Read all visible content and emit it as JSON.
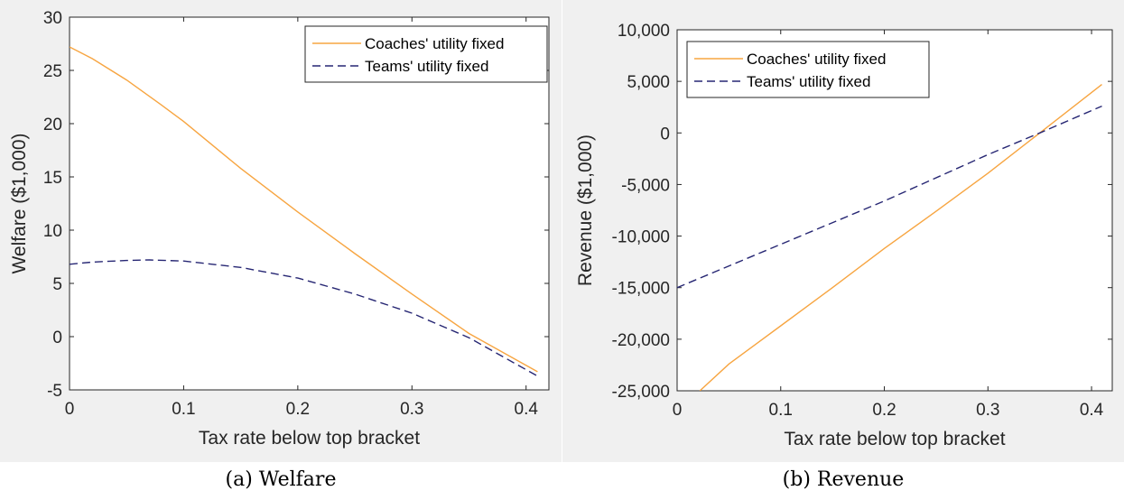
{
  "colors": {
    "coaches": "#F7A541",
    "teams": "#262673",
    "background": "#f0f0f0"
  },
  "chart_data": [
    {
      "id": "a",
      "type": "line",
      "caption": "(a) Welfare",
      "xlabel": "Tax rate below top bracket",
      "ylabel": "Welfare ($1,000)",
      "xlim": [
        0,
        0.42
      ],
      "ylim": [
        -5,
        30
      ],
      "xticks": [
        0,
        0.1,
        0.2,
        0.3,
        0.4
      ],
      "xtick_labels": [
        "0",
        "0.1",
        "0.2",
        "0.3",
        "0.4"
      ],
      "yticks": [
        -5,
        0,
        5,
        10,
        15,
        20,
        25,
        30
      ],
      "ytick_labels": [
        "-5",
        "0",
        "5",
        "10",
        "15",
        "20",
        "25",
        "30"
      ],
      "legend_position": "top-right",
      "grid": false,
      "series": [
        {
          "name": "Coaches' utility fixed",
          "style": "solid",
          "x": [
            0,
            0.02,
            0.05,
            0.08,
            0.1,
            0.15,
            0.2,
            0.25,
            0.3,
            0.35,
            0.41
          ],
          "y": [
            27.2,
            26.1,
            24.1,
            21.8,
            20.2,
            15.8,
            11.7,
            7.8,
            4.0,
            0.3,
            -3.3
          ]
        },
        {
          "name": "Teams' utility fixed",
          "style": "dashed",
          "x": [
            0,
            0.02,
            0.05,
            0.07,
            0.1,
            0.15,
            0.2,
            0.25,
            0.3,
            0.35,
            0.41
          ],
          "y": [
            6.8,
            7.0,
            7.15,
            7.2,
            7.1,
            6.5,
            5.5,
            4.0,
            2.2,
            -0.1,
            -3.7
          ]
        }
      ]
    },
    {
      "id": "b",
      "type": "line",
      "caption": "(b) Revenue",
      "xlabel": "Tax rate below top bracket",
      "ylabel": "Revenue ($1,000)",
      "xlim": [
        0,
        0.42
      ],
      "ylim": [
        -25000,
        10000
      ],
      "xticks": [
        0,
        0.1,
        0.2,
        0.3,
        0.4
      ],
      "xtick_labels": [
        "0",
        "0.1",
        "0.2",
        "0.3",
        "0.4"
      ],
      "yticks": [
        -25000,
        -20000,
        -15000,
        -10000,
        -5000,
        0,
        5000,
        10000
      ],
      "ytick_labels": [
        "-25,000",
        "-20,000",
        "-15,000",
        "-10,000",
        "-5,000",
        "0",
        "5,000",
        "10,000"
      ],
      "legend_position": "top-left",
      "grid": false,
      "series": [
        {
          "name": "Coaches' utility fixed",
          "style": "solid",
          "x": [
            0.022,
            0.05,
            0.1,
            0.15,
            0.2,
            0.25,
            0.3,
            0.35,
            0.41
          ],
          "y": [
            -25000,
            -22400,
            -18700,
            -15000,
            -11200,
            -7600,
            -3900,
            0,
            4700
          ]
        },
        {
          "name": "Teams' utility fixed",
          "style": "dashed",
          "x": [
            0,
            0.1,
            0.2,
            0.3,
            0.35,
            0.41
          ],
          "y": [
            -15000,
            -10800,
            -6600,
            -2100,
            0,
            2600
          ]
        }
      ]
    }
  ]
}
